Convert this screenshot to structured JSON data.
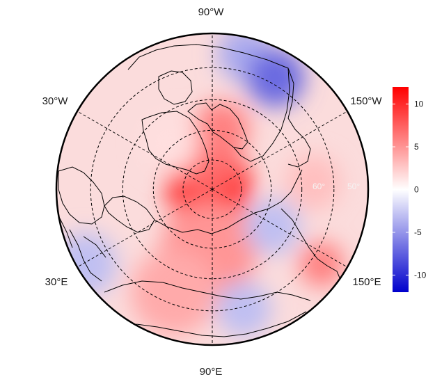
{
  "map": {
    "projection": "north-polar-stereographic",
    "longitude_labels": [
      {
        "name": "lon-label-90w",
        "text": "90°W"
      },
      {
        "name": "lon-label-30w",
        "text": "30°W"
      },
      {
        "name": "lon-label-150w",
        "text": "150°W"
      },
      {
        "name": "lon-label-30e",
        "text": "30°E"
      },
      {
        "name": "lon-label-150e",
        "text": "150°E"
      },
      {
        "name": "lon-label-90e",
        "text": "90°E"
      }
    ],
    "latitude_labels": [
      "60°",
      "50°"
    ],
    "graticule": {
      "latitude_circles_deg": [
        80,
        70,
        60,
        50
      ],
      "meridians_deg": [
        -150,
        -90,
        -30,
        30,
        90,
        150
      ],
      "line_style": "dashed",
      "color": "#000000"
    },
    "palette": {
      "negative": "#0000cc",
      "zero": "#ffffff",
      "positive": "#ff0000"
    },
    "field_anomalies": [
      {
        "region": "north-pole-center",
        "value": 9.5
      },
      {
        "region": "greenland-sea-east",
        "value": 7
      },
      {
        "region": "canadian-arctic-archipelago",
        "value": 6
      },
      {
        "region": "greenland-interior",
        "value": 1.5
      },
      {
        "region": "labrador-hudson",
        "value": -4
      },
      {
        "region": "western-canada-alaska-interior",
        "value": -7
      },
      {
        "region": "northern-siberia",
        "value": 5
      },
      {
        "region": "central-asia-kazakhstan",
        "value": 4
      },
      {
        "region": "eastern-europe",
        "value": -3
      },
      {
        "region": "east-siberia",
        "value": -3
      },
      {
        "region": "kamchatka-okhotsk",
        "value": 6
      },
      {
        "region": "bering-alaska-coast",
        "value": 3
      },
      {
        "region": "mongolia-china-border",
        "value": -3
      }
    ]
  },
  "colorbar": {
    "ticks": [
      {
        "value": 10,
        "label": "10"
      },
      {
        "value": 5,
        "label": "5"
      },
      {
        "value": 0,
        "label": "0"
      },
      {
        "value": -5,
        "label": "-5"
      },
      {
        "value": -10,
        "label": "-10"
      }
    ],
    "range": [
      -12,
      12
    ]
  }
}
